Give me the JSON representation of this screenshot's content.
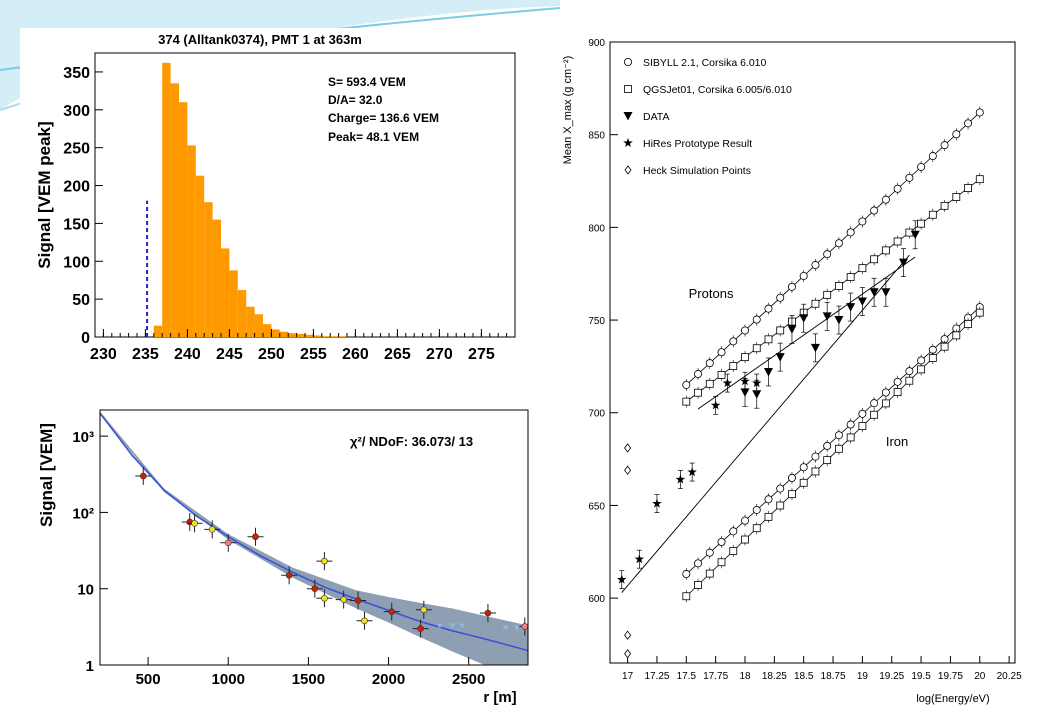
{
  "colors": {
    "accent_blue": "#3fb6d8",
    "histogram_fill": "#ff9900",
    "histogram_title_bg": "#ffffff",
    "ldf_band": "#8e9fb3",
    "ldf_line": "#3a4fd6",
    "dashed_marker": "#2222cc"
  },
  "chart_data": [
    {
      "type": "bar",
      "title": "374 (Alltank0374), PMT 1 at 363m",
      "xlabel": "",
      "ylabel": "Signal [VEM peak]",
      "xlim": [
        229,
        279
      ],
      "ylim": [
        0,
        375
      ],
      "xticks": [
        "230",
        "235",
        "240",
        "245",
        "250",
        "255",
        "260",
        "265",
        "270",
        "275"
      ],
      "yticks": [
        "0",
        "50",
        "100",
        "150",
        "200",
        "250",
        "300",
        "350"
      ],
      "stats": {
        "s": "S= 593.4 VEM",
        "da": "D/A= 32.0",
        "charge": "Charge=  136.6 VEM",
        "peak": "Peak= 48.1 VEM"
      },
      "dashed_x": 235.2,
      "dashed_top": 180,
      "bin_width": 1,
      "bin_starts": [
        236,
        237,
        238,
        239,
        240,
        241,
        242,
        243,
        244,
        245,
        246,
        247,
        248,
        249,
        250,
        251,
        252,
        253,
        254,
        255,
        256,
        257,
        258
      ],
      "values": [
        15,
        362,
        335,
        310,
        253,
        213,
        178,
        155,
        117,
        88,
        62,
        40,
        30,
        17,
        10,
        7,
        5,
        4,
        3,
        2,
        1,
        1,
        1
      ]
    },
    {
      "type": "scatter",
      "title": "",
      "xlabel": "r [m]",
      "ylabel": "Signal [VEM]",
      "annotation": "χ²/ NDoF: 36.073/ 13",
      "xlim": [
        200,
        2870
      ],
      "ylim_log": [
        1,
        2200
      ],
      "log_y": true,
      "xticks": [
        "500",
        "1000",
        "1500",
        "2000",
        "2500"
      ],
      "yticks": [
        {
          "value": 1000,
          "label": "10³"
        },
        {
          "value": 100,
          "label": "10²"
        },
        {
          "value": 10,
          "label": "10"
        },
        {
          "value": 1,
          "label": "1"
        }
      ],
      "fit_line": {
        "x": [
          200,
          400,
          600,
          800,
          1000,
          1200,
          1400,
          1600,
          1800,
          2000,
          2200,
          2400,
          2600,
          2870
        ],
        "y": [
          2000,
          560,
          195,
          90,
          48,
          27,
          16.5,
          10.5,
          7.3,
          5.2,
          3.7,
          2.8,
          2.2,
          1.55
        ]
      },
      "band_upper": {
        "x": [
          200,
          600,
          1000,
          1400,
          1800,
          2000,
          2200,
          2400,
          2600,
          2870
        ],
        "y": [
          2100,
          205,
          52,
          19,
          9.5,
          7.8,
          6.5,
          5.5,
          4.4,
          3.3
        ]
      },
      "band_lower": {
        "x": [
          200,
          600,
          1000,
          1400,
          1800,
          2000,
          2200,
          2400,
          2600,
          2870
        ],
        "y": [
          1900,
          185,
          44,
          14,
          5.5,
          3.6,
          2.3,
          1.5,
          1.0,
          0.7
        ]
      },
      "series": [
        {
          "marker": "red",
          "points": [
            {
              "x": 470,
              "y": 300
            },
            {
              "x": 760,
              "y": 75
            },
            {
              "x": 1170,
              "y": 48
            },
            {
              "x": 1380,
              "y": 15
            },
            {
              "x": 1540,
              "y": 10
            },
            {
              "x": 1810,
              "y": 7
            },
            {
              "x": 2020,
              "y": 5
            },
            {
              "x": 2200,
              "y": 3
            },
            {
              "x": 2620,
              "y": 4.8
            }
          ]
        },
        {
          "marker": "yellow",
          "points": [
            {
              "x": 790,
              "y": 72
            },
            {
              "x": 900,
              "y": 60
            },
            {
              "x": 1600,
              "y": 23
            },
            {
              "x": 1600,
              "y": 7.5
            },
            {
              "x": 1720,
              "y": 7.2
            },
            {
              "x": 1850,
              "y": 3.8
            },
            {
              "x": 2220,
              "y": 5.3
            }
          ]
        },
        {
          "marker": "pink",
          "points": [
            {
              "x": 1000,
              "y": 40
            },
            {
              "x": 2850,
              "y": 3.2
            }
          ]
        },
        {
          "marker": "lightblue",
          "points": [
            {
              "x": 2320,
              "y": 3.3
            },
            {
              "x": 2400,
              "y": 3.3
            },
            {
              "x": 2460,
              "y": 3.3
            },
            {
              "x": 2730,
              "y": 3.1
            },
            {
              "x": 2800,
              "y": 3.1
            }
          ]
        }
      ]
    },
    {
      "type": "scatter",
      "title": "",
      "xlabel": "log(Energy/eV)",
      "ylabel": "Mean X_max (g cm⁻²)",
      "xlim": [
        16.85,
        20.3
      ],
      "ylim": [
        565,
        900
      ],
      "xticks": [
        "17",
        "17.25",
        "17.5",
        "17.75",
        "18",
        "18.25",
        "18.5",
        "18.75",
        "19",
        "19.25",
        "19.5",
        "19.75",
        "20",
        "20.25"
      ],
      "yticks": [
        "600",
        "650",
        "700",
        "750",
        "800",
        "850",
        "900"
      ],
      "legend": [
        {
          "marker": "circle",
          "label": "SIBYLL 2.1, Corsika 6.010"
        },
        {
          "marker": "square",
          "label": "QGSJet01, Corsika 6.005/6.010"
        },
        {
          "marker": "triangle-down",
          "label": "DATA"
        },
        {
          "marker": "star",
          "label": "HiRes Prototype Result"
        },
        {
          "marker": "diamond",
          "label": "Heck Simulation Points"
        }
      ],
      "annotations": [
        {
          "text": "Protons",
          "x": 17.52,
          "y": 762
        },
        {
          "text": "Iron",
          "x": 19.2,
          "y": 682
        }
      ],
      "series": [
        {
          "name": "SIBYLL 2.1, Corsika 6.010",
          "marker": "circle",
          "lines": [
            {
              "x": [
                17.5,
                20.0
              ],
              "y": [
                715,
                862
              ]
            },
            {
              "x": [
                17.5,
                20.0
              ],
              "y": [
                613,
                757
              ]
            }
          ]
        },
        {
          "name": "QGSJet01, Corsika 6.005/6.010",
          "marker": "square",
          "lines": [
            {
              "x": [
                17.5,
                20.0
              ],
              "y": [
                706,
                826
              ]
            },
            {
              "x": [
                17.5,
                20.0
              ],
              "y": [
                601,
                754
              ]
            }
          ]
        },
        {
          "name": "DATA",
          "marker": "triangle-down",
          "points": [
            {
              "x": 18.0,
              "y": 711
            },
            {
              "x": 18.1,
              "y": 710
            },
            {
              "x": 18.2,
              "y": 722
            },
            {
              "x": 18.3,
              "y": 730
            },
            {
              "x": 18.4,
              "y": 745
            },
            {
              "x": 18.5,
              "y": 751
            },
            {
              "x": 18.6,
              "y": 735
            },
            {
              "x": 18.7,
              "y": 752
            },
            {
              "x": 18.8,
              "y": 750
            },
            {
              "x": 18.9,
              "y": 757
            },
            {
              "x": 19.0,
              "y": 760
            },
            {
              "x": 19.1,
              "y": 765
            },
            {
              "x": 19.2,
              "y": 765
            },
            {
              "x": 19.35,
              "y": 781
            },
            {
              "x": 19.45,
              "y": 796
            }
          ],
          "fit": {
            "x": [
              17.6,
              19.45
            ],
            "y": [
              702,
              784
            ]
          }
        },
        {
          "name": "HiRes Prototype Result",
          "marker": "star",
          "points": [
            {
              "x": 16.95,
              "y": 610
            },
            {
              "x": 17.1,
              "y": 621
            },
            {
              "x": 17.25,
              "y": 651
            },
            {
              "x": 17.45,
              "y": 664
            },
            {
              "x": 17.55,
              "y": 668
            },
            {
              "x": 17.75,
              "y": 704
            },
            {
              "x": 17.85,
              "y": 716
            },
            {
              "x": 18.0,
              "y": 717
            },
            {
              "x": 18.1,
              "y": 716
            }
          ],
          "fit": {
            "x": [
              16.95,
              19.4
            ],
            "y": [
              603,
              785
            ]
          }
        },
        {
          "name": "Heck Simulation Points",
          "marker": "diamond",
          "points": [
            {
              "x": 17.0,
              "y": 681
            },
            {
              "x": 17.0,
              "y": 669
            },
            {
              "x": 17.0,
              "y": 580
            },
            {
              "x": 17.0,
              "y": 570
            }
          ]
        }
      ]
    }
  ]
}
